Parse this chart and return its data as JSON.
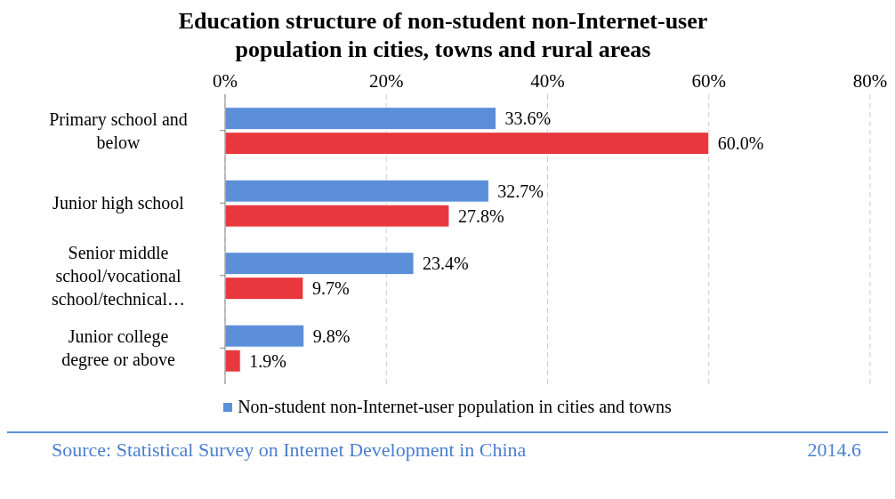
{
  "chart_data": {
    "type": "bar",
    "orientation": "horizontal",
    "title": "Education structure of non-student non-Internet-user population in cities, towns and rural areas",
    "categories": [
      "Primary school and below",
      "Junior high school",
      "Senior middle school/vocational school/technical…",
      "Junior college degree or above"
    ],
    "series": [
      {
        "name": "Non-student non-Internet-user population in cities and towns",
        "color": "#5b8fd9",
        "values": [
          33.6,
          32.7,
          23.4,
          9.8
        ],
        "value_labels": [
          "33.6%",
          "32.7%",
          "23.4%",
          "9.8%"
        ]
      },
      {
        "color": "#e8383d",
        "values": [
          60.0,
          27.8,
          9.7,
          1.9
        ],
        "value_labels": [
          "60.0%",
          "27.8%",
          "9.7%",
          "1.9%"
        ]
      }
    ],
    "xlim": [
      0,
      80
    ],
    "xticks": [
      {
        "value": 0,
        "label": "0%"
      },
      {
        "value": 20,
        "label": "20%"
      },
      {
        "value": 40,
        "label": "40%"
      },
      {
        "value": 60,
        "label": "60%"
      },
      {
        "value": 80,
        "label": "80%"
      }
    ],
    "grid": "x",
    "legend": "bottom",
    "annotations": [
      "Source: Statistical Survey on Internet Development in China",
      "2014.6"
    ]
  }
}
